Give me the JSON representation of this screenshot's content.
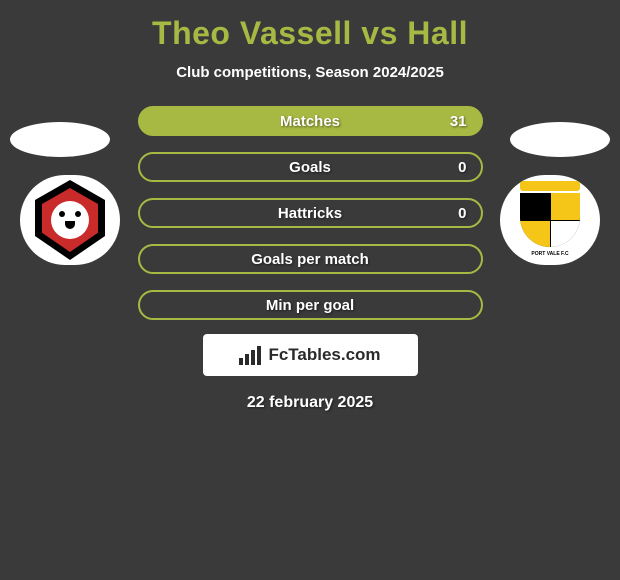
{
  "title": "Theo Vassell vs Hall",
  "subtitle": "Club competitions, Season 2024/2025",
  "colors": {
    "accent": "#a8b943",
    "background": "#3a3a3a",
    "text": "#ffffff"
  },
  "stats": [
    {
      "label": "Matches",
      "value_right": "31",
      "filled": true
    },
    {
      "label": "Goals",
      "value_right": "0",
      "filled": false
    },
    {
      "label": "Hattricks",
      "value_right": "0",
      "filled": false
    },
    {
      "label": "Goals per match",
      "value_right": "",
      "filled": false
    },
    {
      "label": "Min per goal",
      "value_right": "",
      "filled": false
    }
  ],
  "left_club": {
    "name": "left-club-crest",
    "shield_outer_color": "#000000",
    "shield_inner_color": "#c92a2a",
    "icon": "lion-face"
  },
  "right_club": {
    "name": "right-club-crest",
    "ribbon_color": "#f5c518",
    "text": "PORT VALE F.C",
    "quarters": [
      "#000000",
      "#f5c518",
      "#f5c518",
      "#ffffff"
    ]
  },
  "brand": {
    "text": "FcTables.com",
    "icon": "bar-chart-icon"
  },
  "date": "22 february 2025"
}
